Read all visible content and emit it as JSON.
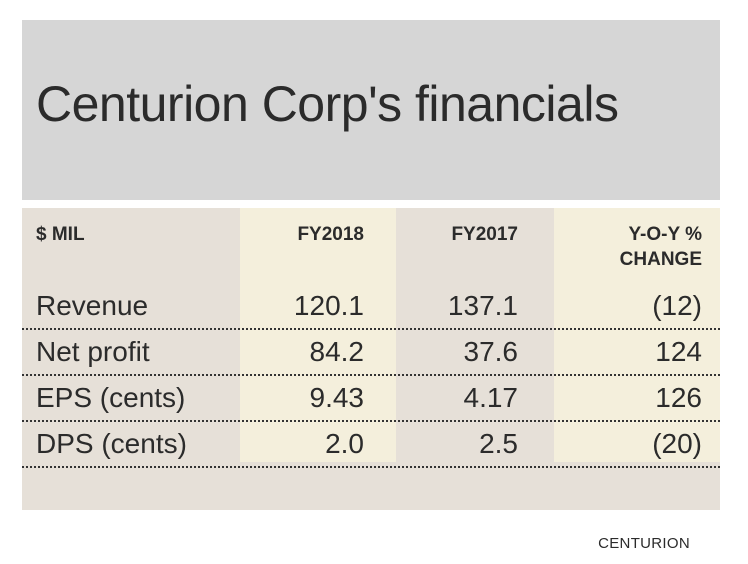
{
  "chart_data": {
    "type": "table",
    "title": "Centurion Corp's financials",
    "columns": [
      "$ MIL",
      "FY2018",
      "FY2017",
      "Y-O-Y % CHANGE"
    ],
    "rows": [
      {
        "label": "Revenue",
        "fy2018": "120.1",
        "fy2017": "137.1",
        "yoy": "(12)"
      },
      {
        "label": "Net profit",
        "fy2018": "84.2",
        "fy2017": "37.6",
        "yoy": "124"
      },
      {
        "label": "EPS (cents)",
        "fy2018": "9.43",
        "fy2017": "4.17",
        "yoy": "126"
      },
      {
        "label": "DPS (cents)",
        "fy2018": "2.0",
        "fy2017": "2.5",
        "yoy": "(20)"
      }
    ],
    "source": "CENTURION"
  },
  "colors": {
    "header_bg": "#d6d6d6",
    "highlight_column": "#f4efdc",
    "table_bg": "#e6e0d8"
  }
}
